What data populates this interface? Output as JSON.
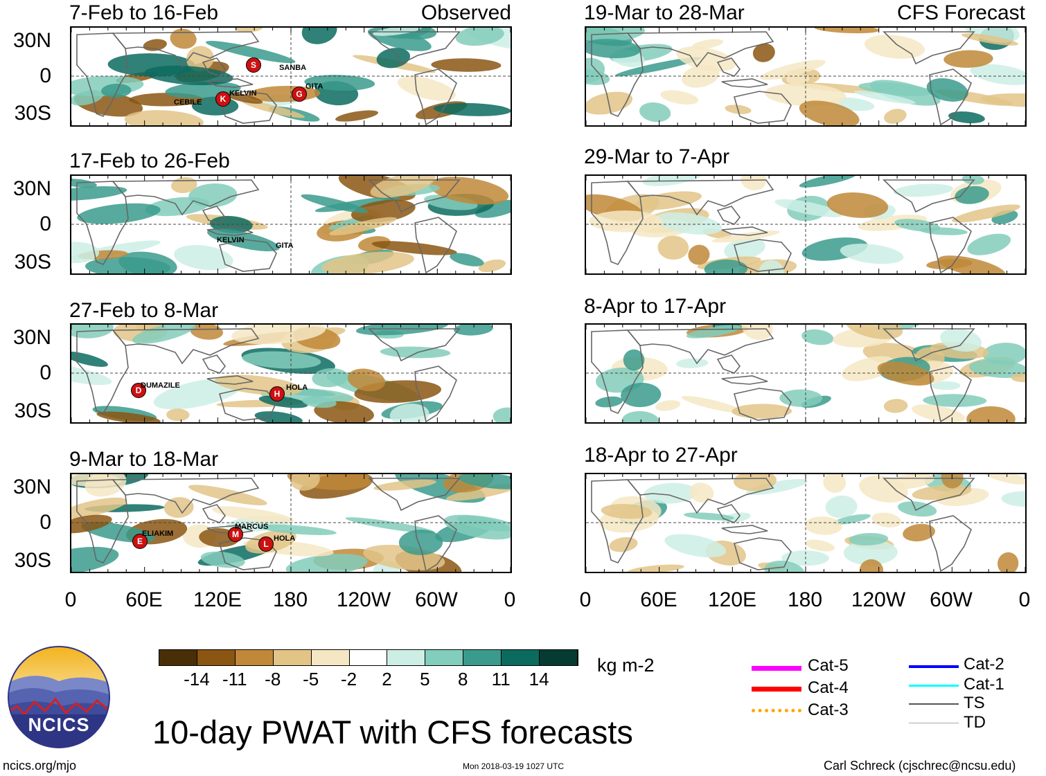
{
  "left_column": {
    "tag": "Observed",
    "panels": [
      {
        "title": "7-Feb to 16-Feb",
        "storms": [
          {
            "name": "SANBA",
            "symbol": "S"
          },
          {
            "name": "KELVIN",
            "symbol": "K"
          },
          {
            "name": "GITA",
            "symbol": "G"
          },
          {
            "name": "CEBILE",
            "symbol": ""
          }
        ]
      },
      {
        "title": "17-Feb to 26-Feb",
        "storms": [
          {
            "name": "KELVIN",
            "symbol": ""
          },
          {
            "name": "GITA",
            "symbol": ""
          }
        ]
      },
      {
        "title": "27-Feb to 8-Mar",
        "storms": [
          {
            "name": "DUMAZILE",
            "symbol": "D"
          },
          {
            "name": "HOLA",
            "symbol": "H"
          }
        ]
      },
      {
        "title": "9-Mar to 18-Mar",
        "storms": [
          {
            "name": "ELIAKIM",
            "symbol": "E"
          },
          {
            "name": "MARCUS",
            "symbol": "M"
          },
          {
            "name": "HOLA",
            "symbol": "L"
          }
        ]
      }
    ]
  },
  "right_column": {
    "tag": "CFS Forecast",
    "panels": [
      {
        "title": "19-Mar to 28-Mar"
      },
      {
        "title": "29-Mar to 7-Apr"
      },
      {
        "title": "8-Apr to 17-Apr"
      },
      {
        "title": "18-Apr to 27-Apr"
      }
    ]
  },
  "y_axis_labels": [
    "30N",
    "0",
    "30S"
  ],
  "x_axis_labels": [
    "0",
    "60E",
    "120E",
    "180",
    "120W",
    "60W",
    "0"
  ],
  "colorbar": {
    "colors": [
      "#4a2e08",
      "#8a5612",
      "#c08838",
      "#e2c487",
      "#f6e7c4",
      "#ffffff",
      "#cceee5",
      "#82cdbb",
      "#3a9b8c",
      "#0c6b5f",
      "#053b33"
    ],
    "ticks": [
      "-14",
      "-11",
      "-8",
      "-5",
      "-2",
      "2",
      "5",
      "8",
      "11",
      "14"
    ],
    "units": "kg m-2"
  },
  "legend": [
    {
      "label": "Cat-5",
      "color": "#ff00ff"
    },
    {
      "label": "Cat-4",
      "color": "#ff0000"
    },
    {
      "label": "Cat-3",
      "color": "#ffa500"
    },
    {
      "label": "Cat-2",
      "color": "#0000ff"
    },
    {
      "label": "Cat-1",
      "color": "#00ffff"
    },
    {
      "label": "TS",
      "color": "#555555"
    },
    {
      "label": "TD",
      "color": "#aaaaaa"
    }
  ],
  "logo": {
    "text": "NCICS"
  },
  "title": "10-day PWAT with CFS forecasts",
  "footer": {
    "url": "ncics.org/mjo",
    "timestamp": "Mon 2018-03-19 1027 UTC",
    "author": "Carl Schreck (cjschrec@ncsu.edu)"
  }
}
